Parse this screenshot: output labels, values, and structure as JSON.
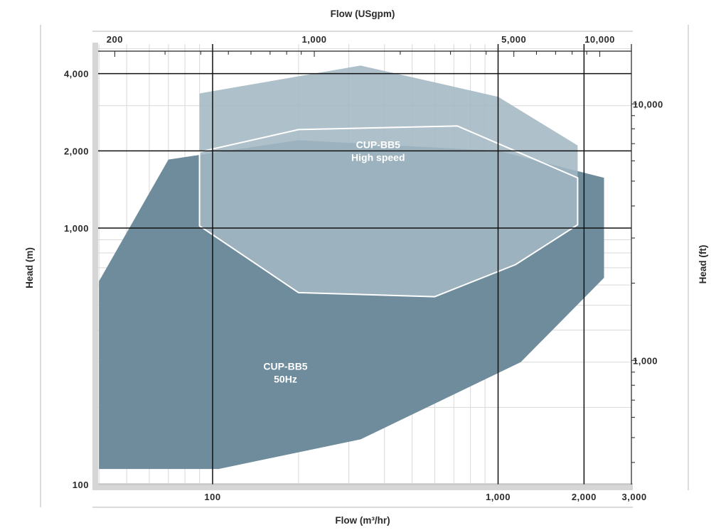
{
  "chart_data": {
    "type": "area",
    "title": "",
    "colors": {
      "region_50hz": "#6f8c9c",
      "region_high_speed": "#a3b7c3",
      "high_speed_outline": "#ffffff",
      "major_grid": "#111111",
      "minor_grid": "#d9d9d9",
      "frame": "#d6d6d6"
    },
    "axes": {
      "x_bottom": {
        "label": "Flow (m³/hr)",
        "scale": "log",
        "range": [
          40,
          3000
        ],
        "ticks": [
          {
            "value": 100,
            "label": "100"
          },
          {
            "value": 1000,
            "label": "1,000"
          },
          {
            "value": 2000,
            "label": "2,000"
          },
          {
            "value": 3000,
            "label": "3,000"
          }
        ]
      },
      "x_top": {
        "label": "Flow (USgpm)",
        "scale": "log",
        "ticks": [
          {
            "value": 200,
            "label": "200"
          },
          {
            "value": 1000,
            "label": "1,000"
          },
          {
            "value": 5000,
            "label": "5,000"
          },
          {
            "value": 10000,
            "label": "10,000"
          }
        ]
      },
      "y_left": {
        "label": "Head (m)",
        "scale": "log",
        "range": [
          100,
          5000
        ],
        "ticks": [
          {
            "value": 100,
            "label": "100"
          },
          {
            "value": 1000,
            "label": "1,000"
          },
          {
            "value": 2000,
            "label": "2,000"
          },
          {
            "value": 4000,
            "label": "4,000"
          }
        ]
      },
      "y_right": {
        "label": "Head (ft)",
        "scale": "log",
        "ticks": [
          {
            "value": 1000,
            "label": "1,000"
          },
          {
            "value": 10000,
            "label": "10,000"
          }
        ]
      }
    },
    "grid": true,
    "series": [
      {
        "name": "CUP-BB5 50Hz",
        "label_lines": [
          "CUP-BB5",
          "50Hz"
        ],
        "label_at": {
          "x": 180,
          "y": 280
        },
        "points": [
          {
            "x": 40,
            "y": 620
          },
          {
            "x": 70,
            "y": 1850
          },
          {
            "x": 200,
            "y": 2200
          },
          {
            "x": 1000,
            "y": 2000
          },
          {
            "x": 2350,
            "y": 1570
          },
          {
            "x": 2350,
            "y": 640
          },
          {
            "x": 1200,
            "y": 300
          },
          {
            "x": 330,
            "y": 150
          },
          {
            "x": 105,
            "y": 115
          },
          {
            "x": 40,
            "y": 115
          }
        ]
      },
      {
        "name": "CUP-BB5 High speed",
        "label_lines": [
          "CUP-BB5",
          "High speed"
        ],
        "label_at": {
          "x": 380,
          "y": 2050
        },
        "points": [
          {
            "x": 90,
            "y": 3350
          },
          {
            "x": 330,
            "y": 4300
          },
          {
            "x": 1000,
            "y": 3250
          },
          {
            "x": 1900,
            "y": 2100
          },
          {
            "x": 1900,
            "y": 1030
          },
          {
            "x": 1150,
            "y": 720
          },
          {
            "x": 600,
            "y": 540
          },
          {
            "x": 200,
            "y": 560
          },
          {
            "x": 90,
            "y": 1020
          }
        ]
      }
    ]
  }
}
